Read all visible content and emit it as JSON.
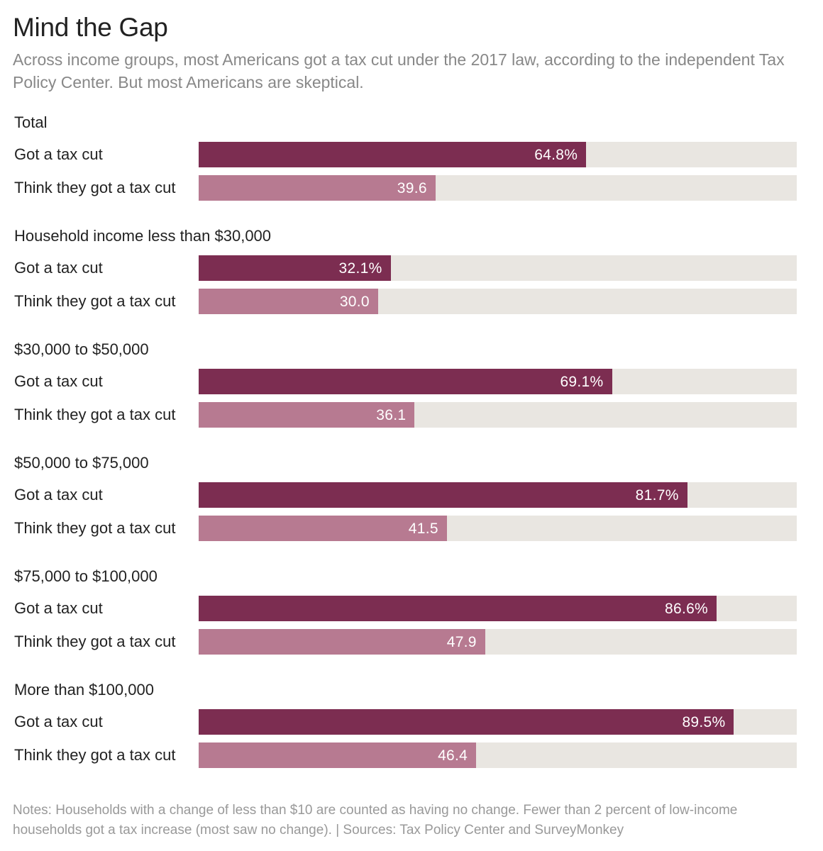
{
  "header": {
    "title": "Mind the Gap",
    "subtitle": "Across income groups, most Americans got a tax cut under the 2017 law, according to the independent Tax Policy Center. But most Americans are skeptical."
  },
  "footer": {
    "notes": "Notes: Households with a change of less than $10 are counted as having no change. Fewer than 2 percent of low-income households got a tax increase (most saw no change). | Sources: Tax Policy Center and SurveyMonkey"
  },
  "colors": {
    "actual": "#7c2d51",
    "perceived": "#b77a91",
    "track": "#e9e6e1"
  },
  "chart_data": {
    "type": "bar",
    "orientation": "horizontal",
    "title": "Mind the Gap",
    "xlim": [
      0,
      100
    ],
    "grid": false,
    "legend": "none",
    "groups": [
      {
        "label": "Total",
        "rows": [
          {
            "label": "Got a tax cut",
            "value": 64.8,
            "display": "64.8%",
            "kind": "actual"
          },
          {
            "label": "Think they got a tax cut",
            "value": 39.6,
            "display": "39.6",
            "kind": "perceived"
          }
        ]
      },
      {
        "label": "Household income less than $30,000",
        "rows": [
          {
            "label": "Got a tax cut",
            "value": 32.1,
            "display": "32.1%",
            "kind": "actual"
          },
          {
            "label": "Think they got a tax cut",
            "value": 30.0,
            "display": "30.0",
            "kind": "perceived"
          }
        ]
      },
      {
        "label": "$30,000 to $50,000",
        "rows": [
          {
            "label": "Got a tax cut",
            "value": 69.1,
            "display": "69.1%",
            "kind": "actual"
          },
          {
            "label": "Think they got a tax cut",
            "value": 36.1,
            "display": "36.1",
            "kind": "perceived"
          }
        ]
      },
      {
        "label": "$50,000 to $75,000",
        "rows": [
          {
            "label": "Got a tax cut",
            "value": 81.7,
            "display": "81.7%",
            "kind": "actual"
          },
          {
            "label": "Think they got a tax cut",
            "value": 41.5,
            "display": "41.5",
            "kind": "perceived"
          }
        ]
      },
      {
        "label": "$75,000 to $100,000",
        "rows": [
          {
            "label": "Got a tax cut",
            "value": 86.6,
            "display": "86.6%",
            "kind": "actual"
          },
          {
            "label": "Think they got a tax cut",
            "value": 47.9,
            "display": "47.9",
            "kind": "perceived"
          }
        ]
      },
      {
        "label": "More than $100,000",
        "rows": [
          {
            "label": "Got a tax cut",
            "value": 89.5,
            "display": "89.5%",
            "kind": "actual"
          },
          {
            "label": "Think they got a tax cut",
            "value": 46.4,
            "display": "46.4",
            "kind": "perceived"
          }
        ]
      }
    ]
  }
}
